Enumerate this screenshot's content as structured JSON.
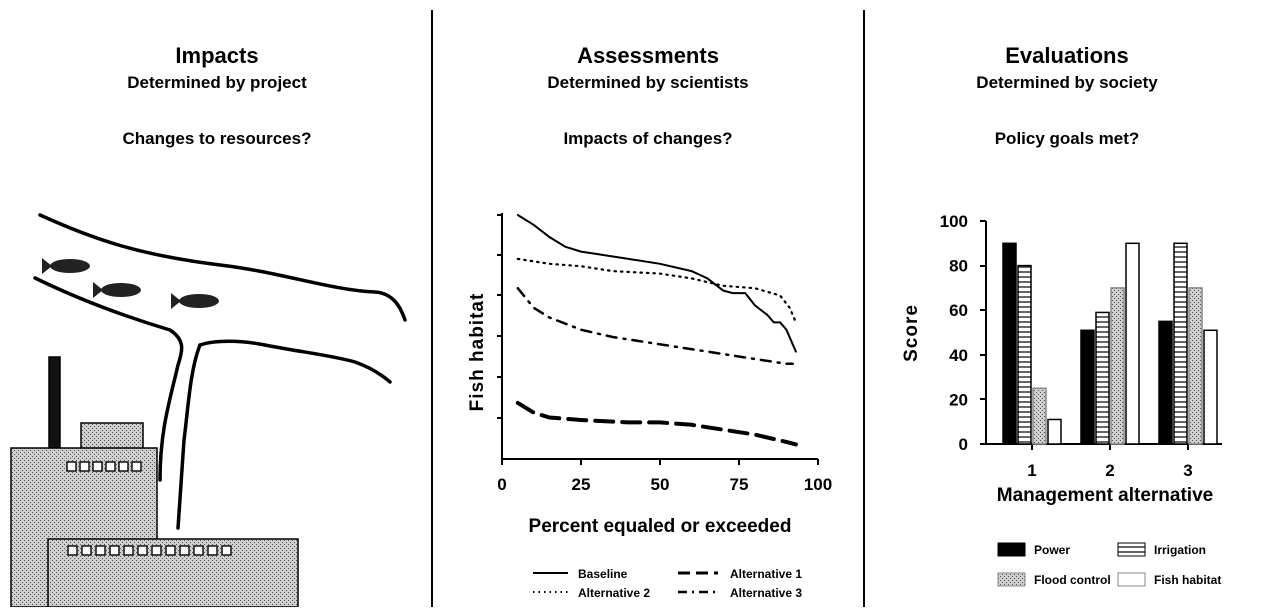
{
  "panels": [
    {
      "title": "Impacts",
      "subtitle": "Determined by project",
      "question": "Changes to resources?"
    },
    {
      "title": "Assessments",
      "subtitle": "Determined by scientists",
      "question": "Impacts of changes?"
    },
    {
      "title": "Evaluations",
      "subtitle": "Determined by society",
      "question": "Policy goals met?"
    }
  ],
  "chart_data": [
    {
      "type": "line",
      "xlabel": "Percent equaled or exceeded",
      "ylabel": "Fish habitat",
      "xlim": [
        0,
        100
      ],
      "xticks": [
        "0",
        "25",
        "50",
        "75",
        "100"
      ],
      "ylim": [
        0,
        100
      ],
      "legend_position": "bottom",
      "series": [
        {
          "name": "Baseline",
          "style": "solid",
          "points": [
            [
              5,
              100
            ],
            [
              10,
              96
            ],
            [
              15,
              91
            ],
            [
              20,
              87
            ],
            [
              25,
              85
            ],
            [
              30,
              84
            ],
            [
              40,
              82
            ],
            [
              50,
              80
            ],
            [
              60,
              77
            ],
            [
              65,
              74
            ],
            [
              70,
              69
            ],
            [
              73,
              68
            ],
            [
              77,
              68
            ],
            [
              80,
              63
            ],
            [
              84,
              59
            ],
            [
              86,
              56
            ],
            [
              88,
              56
            ],
            [
              90,
              53
            ],
            [
              92,
              47
            ],
            [
              93,
              44
            ]
          ]
        },
        {
          "name": "Alternative 1",
          "style": "long-dash",
          "points": [
            [
              5,
              23
            ],
            [
              10,
              19
            ],
            [
              15,
              17
            ],
            [
              25,
              16
            ],
            [
              40,
              15
            ],
            [
              50,
              15
            ],
            [
              60,
              14
            ],
            [
              70,
              12
            ],
            [
              80,
              10
            ],
            [
              90,
              7
            ],
            [
              93,
              6
            ]
          ]
        },
        {
          "name": "Alternative 2",
          "style": "dotted",
          "points": [
            [
              5,
              82
            ],
            [
              15,
              80
            ],
            [
              25,
              79
            ],
            [
              35,
              77
            ],
            [
              50,
              76
            ],
            [
              60,
              74
            ],
            [
              70,
              71
            ],
            [
              80,
              70
            ],
            [
              88,
              67
            ],
            [
              91,
              62
            ],
            [
              93,
              56
            ]
          ]
        },
        {
          "name": "Alternative 3",
          "style": "dash-dot",
          "points": [
            [
              5,
              70
            ],
            [
              10,
              62
            ],
            [
              15,
              58
            ],
            [
              25,
              53
            ],
            [
              35,
              50
            ],
            [
              50,
              47
            ],
            [
              65,
              44
            ],
            [
              80,
              41
            ],
            [
              90,
              39
            ],
            [
              92,
              39
            ]
          ]
        }
      ]
    },
    {
      "type": "bar",
      "xlabel": "Management alternative",
      "ylabel": "Score",
      "ylim": [
        0,
        100
      ],
      "yticks": [
        "0",
        "20",
        "40",
        "60",
        "80",
        "100"
      ],
      "categories": [
        "1",
        "2",
        "3"
      ],
      "legend_position": "bottom",
      "series": [
        {
          "name": "Power",
          "fill": "solid-black",
          "values": [
            90,
            51,
            55
          ]
        },
        {
          "name": "Irrigation",
          "fill": "horizontal-lines",
          "values": [
            80,
            59,
            90
          ]
        },
        {
          "name": "Flood control",
          "fill": "stipple",
          "values": [
            25,
            70,
            70
          ]
        },
        {
          "name": "Fish habitat",
          "fill": "white",
          "values": [
            11,
            90,
            51
          ]
        }
      ]
    }
  ]
}
